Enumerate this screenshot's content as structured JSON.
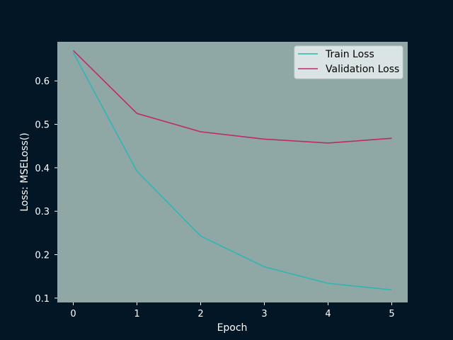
{
  "colors": {
    "page_background": "#021626",
    "plot_background": "#8fa8a6",
    "legend_background": "#e9efee",
    "axis_text": "#ffffff",
    "train_line": "#30b5b5",
    "validation_line": "#c0286a"
  },
  "chart_data": {
    "type": "line",
    "title": "",
    "xlabel": "Epoch",
    "ylabel": "Loss: MSELoss()",
    "x": [
      0,
      1,
      2,
      3,
      4,
      5
    ],
    "xlim": [
      -0.25,
      5.25
    ],
    "ylim": [
      0.09,
      0.69
    ],
    "xticks": [
      "0",
      "1",
      "2",
      "3",
      "4",
      "5"
    ],
    "yticks": [
      "0.1",
      "0.2",
      "0.3",
      "0.4",
      "0.5",
      "0.6"
    ],
    "grid": false,
    "legend_position": "top-right",
    "series": [
      {
        "name": "Train Loss",
        "color": "#30b5b5",
        "values": [
          0.665,
          0.392,
          0.243,
          0.172,
          0.134,
          0.119
        ]
      },
      {
        "name": "Validation Loss",
        "color": "#c0286a",
        "values": [
          0.67,
          0.525,
          0.483,
          0.466,
          0.457,
          0.468
        ]
      }
    ]
  }
}
